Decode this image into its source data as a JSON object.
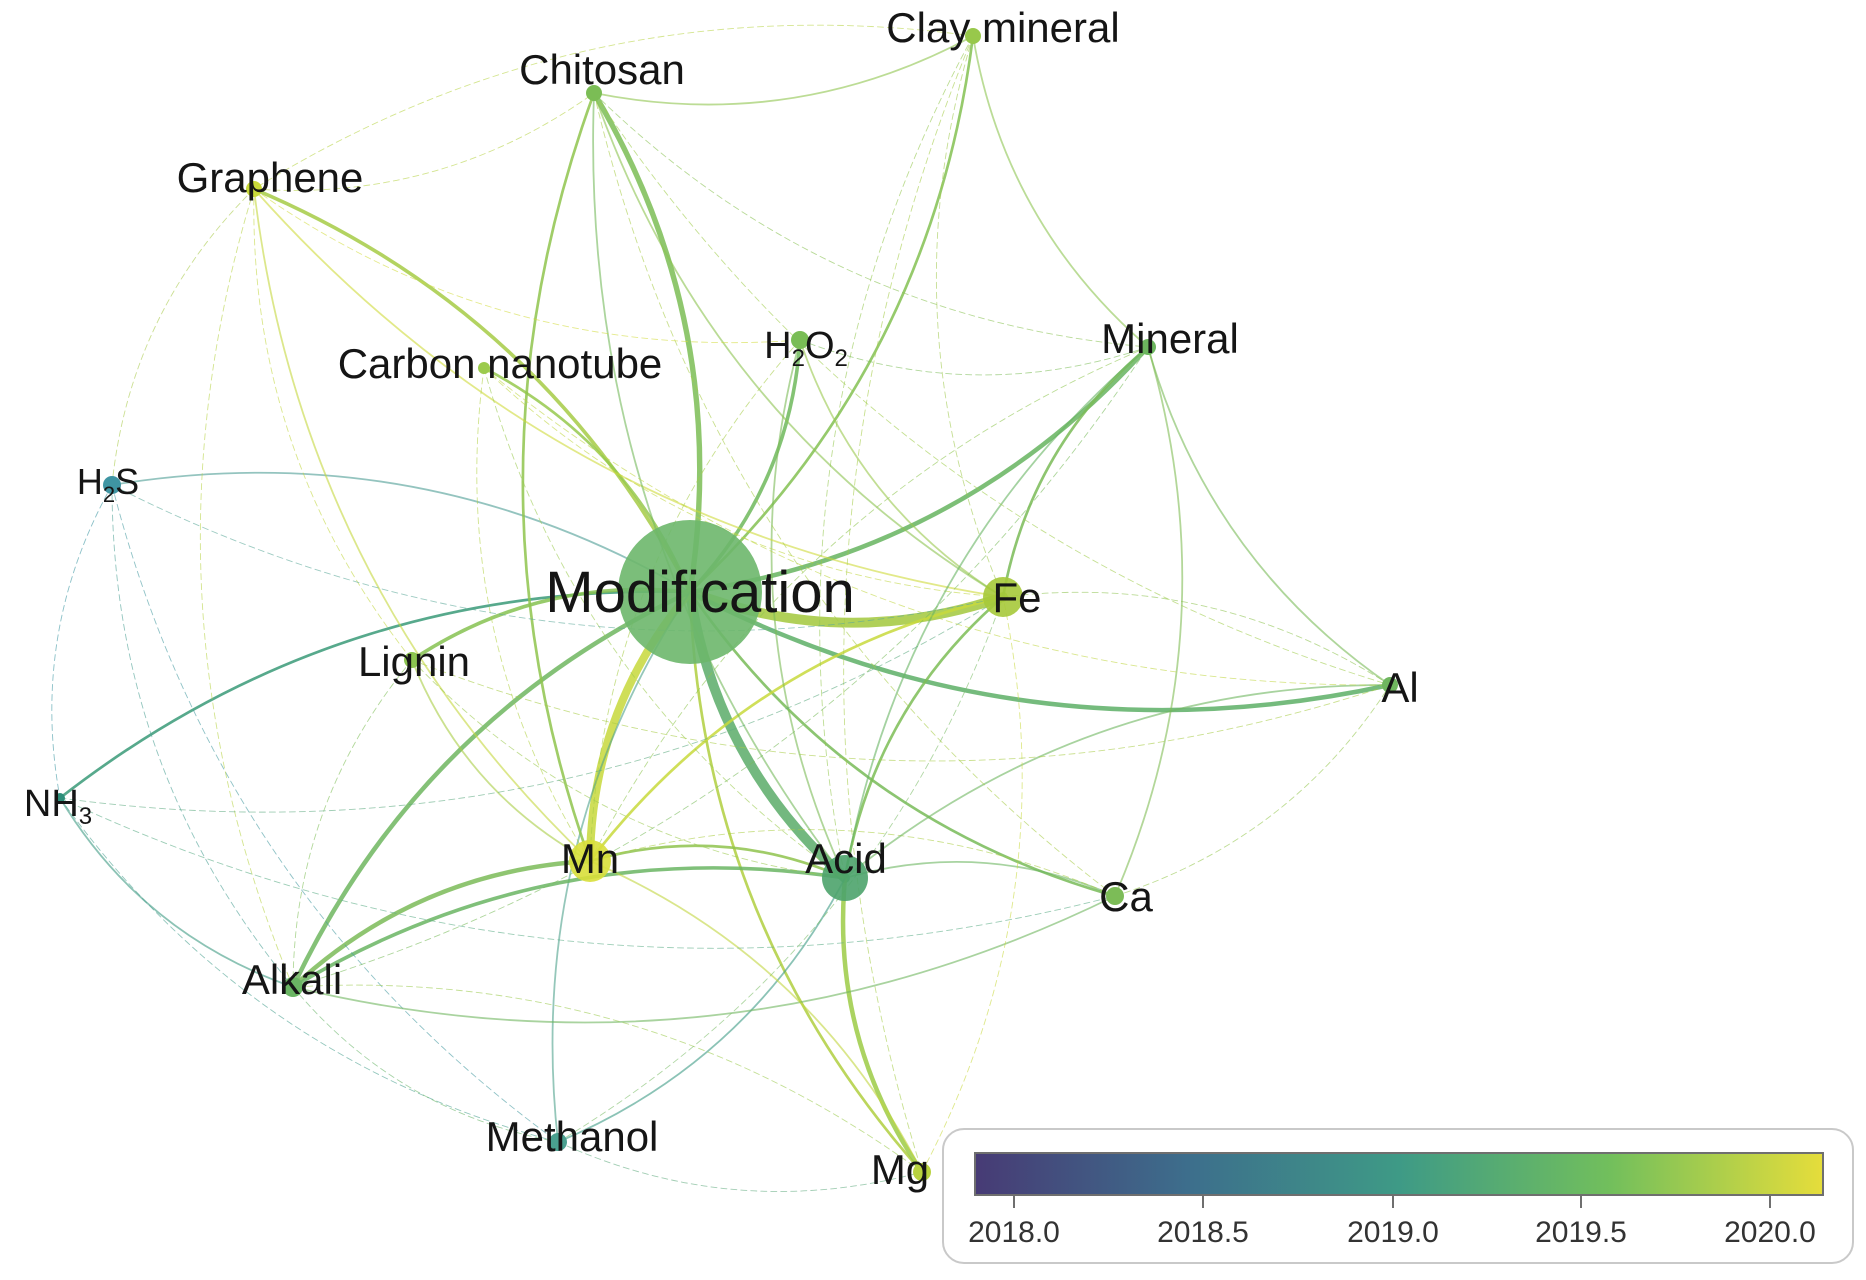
{
  "nodes": [
    {
      "id": "modification",
      "label": "Modification",
      "color": "#6db76c"
    },
    {
      "id": "fe",
      "label": "Fe",
      "color": "#a6c93a"
    },
    {
      "id": "acid",
      "label": "Acid",
      "color": "#4da36c"
    },
    {
      "id": "mn",
      "label": "Mn",
      "color": "#d8df3a"
    },
    {
      "id": "lignin",
      "label": "Lignin",
      "color": "#8cc450"
    },
    {
      "id": "chitosan",
      "label": "Chitosan",
      "color": "#7bbd55"
    },
    {
      "id": "clay",
      "label": "Clay mineral",
      "color": "#98c84b"
    },
    {
      "id": "graphene",
      "label": "Graphene",
      "color": "#c9d93a"
    },
    {
      "id": "cnt",
      "label": "Carbon nanotube",
      "color": "#9ccb4d"
    },
    {
      "id": "h2o2",
      "label_main": "H",
      "label_sub1": "2",
      "label_mid": "O",
      "label_sub2": "2",
      "color": "#79bd55"
    },
    {
      "id": "mineral",
      "label": "Mineral",
      "color": "#6cb65e"
    },
    {
      "id": "h2s",
      "label_main": "H",
      "label_sub": "2",
      "label_end": "S",
      "color": "#3f95a3"
    },
    {
      "id": "al",
      "label": "Al",
      "color": "#6fb65f"
    },
    {
      "id": "nh3",
      "label_main": "NH",
      "label_sub": "3",
      "color": "#2e8f7a"
    },
    {
      "id": "ca",
      "label": "Ca",
      "color": "#7cbc57"
    },
    {
      "id": "alkali",
      "label": "Alkali",
      "color": "#6ab563"
    },
    {
      "id": "methanol",
      "label": "Methanol",
      "color": "#4aa08f"
    },
    {
      "id": "mg",
      "label": "Mg",
      "color": "#b8d23e"
    }
  ],
  "links": [
    [
      "modification",
      "fe",
      11,
      "#a2c83c"
    ],
    [
      "modification",
      "acid",
      11,
      "#5aab68"
    ],
    [
      "modification",
      "mn",
      9,
      "#c7d83b"
    ],
    [
      "modification",
      "chitosan",
      6,
      "#7bbd55"
    ],
    [
      "modification",
      "graphene",
      4,
      "#a6cb45"
    ],
    [
      "modification",
      "mineral",
      5,
      "#66b45f"
    ],
    [
      "modification",
      "al",
      5,
      "#5daf66"
    ],
    [
      "modification",
      "nh3",
      3,
      "#3a9a78"
    ],
    [
      "modification",
      "h2s",
      2,
      "#4c9d94"
    ],
    [
      "modification",
      "alkali",
      5,
      "#6fb65f"
    ],
    [
      "modification",
      "lignin",
      4,
      "#86c251"
    ],
    [
      "modification",
      "h2o2",
      4,
      "#6fb85c"
    ],
    [
      "modification",
      "clay",
      3,
      "#84c152"
    ],
    [
      "modification",
      "cnt",
      3,
      "#96c94e"
    ],
    [
      "modification",
      "methanol",
      2,
      "#4fa28c"
    ],
    [
      "modification",
      "mg",
      3,
      "#b0cf40"
    ],
    [
      "modification",
      "ca",
      3,
      "#78bb58"
    ],
    [
      "mn",
      "alkali",
      5,
      "#7bbb58"
    ],
    [
      "acid",
      "alkali",
      4,
      "#6ab563"
    ],
    [
      "acid",
      "mg",
      5,
      "#9ccb45"
    ],
    [
      "acid",
      "mn",
      3,
      "#8fc34e"
    ],
    [
      "fe",
      "mn",
      3,
      "#c8d93c"
    ],
    [
      "fe",
      "acid",
      3,
      "#7dbd56"
    ],
    [
      "mineral",
      "al",
      2,
      "#79bb59"
    ],
    [
      "mineral",
      "fe",
      3,
      "#7abb57"
    ],
    [
      "h2o2",
      "fe",
      2,
      "#9ac84c"
    ],
    [
      "h2o2",
      "acid",
      2,
      "#7bbb56"
    ],
    [
      "chitosan",
      "mn",
      3,
      "#8fc44e"
    ],
    [
      "chitosan",
      "fe",
      2,
      "#8cc350"
    ],
    [
      "chitosan",
      "clay",
      2,
      "#8fc54f"
    ],
    [
      "graphene",
      "mn",
      2,
      "#c5d73e"
    ],
    [
      "graphene",
      "fe",
      2,
      "#cfdb3b"
    ],
    [
      "graphene",
      "chitosan",
      1,
      "#b5d244"
    ],
    [
      "clay",
      "mineral",
      2,
      "#8dc451"
    ],
    [
      "clay",
      "mg",
      1,
      "#a3cb46"
    ],
    [
      "clay",
      "acid",
      1,
      "#93c64d"
    ],
    [
      "h2s",
      "nh3",
      1,
      "#3c96a1"
    ],
    [
      "h2s",
      "methanol",
      1,
      "#459aa0"
    ],
    [
      "nh3",
      "alkali",
      2,
      "#3f9b84"
    ],
    [
      "nh3",
      "methanol",
      1,
      "#4aa08f"
    ],
    [
      "methanol",
      "acid",
      2,
      "#3e9b86"
    ],
    [
      "methanol",
      "mg",
      1,
      "#62ac80"
    ],
    [
      "alkali",
      "ca",
      2,
      "#6fb65f"
    ],
    [
      "alkali",
      "methanol",
      1,
      "#6ab56b"
    ],
    [
      "ca",
      "mineral",
      2,
      "#80bd55"
    ],
    [
      "ca",
      "al",
      1,
      "#94c64e"
    ],
    [
      "ca",
      "acid",
      2,
      "#6db660"
    ],
    [
      "ca",
      "mn",
      1,
      "#aacd43"
    ],
    [
      "al",
      "acid",
      2,
      "#6eb65f"
    ],
    [
      "al",
      "fe",
      1,
      "#8dc350"
    ],
    [
      "lignin",
      "mn",
      2,
      "#a8cd45"
    ],
    [
      "lignin",
      "acid",
      1,
      "#9ac84b"
    ],
    [
      "lignin",
      "alkali",
      1,
      "#7fbe56"
    ],
    [
      "cnt",
      "mn",
      1,
      "#b1d042"
    ],
    [
      "cnt",
      "acid",
      1,
      "#9ac94c"
    ],
    [
      "cnt",
      "fe",
      1,
      "#c0d540"
    ],
    [
      "mg",
      "mn",
      2,
      "#c1d53f"
    ],
    [
      "mg",
      "fe",
      1,
      "#c8d83d"
    ],
    [
      "mg",
      "alkali",
      1,
      "#9bc94c"
    ],
    [
      "mineral",
      "acid",
      2,
      "#68b463"
    ],
    [
      "mineral",
      "mn",
      1,
      "#8ec44f"
    ],
    [
      "h2o2",
      "mn",
      1,
      "#a5cb46"
    ],
    [
      "h2o2",
      "mineral",
      1,
      "#7cbc57"
    ],
    [
      "chitosan",
      "acid",
      2,
      "#74b95b"
    ],
    [
      "chitosan",
      "mineral",
      1,
      "#88c152"
    ],
    [
      "graphene",
      "lignin",
      1,
      "#c2d63f"
    ],
    [
      "graphene",
      "alkali",
      1,
      "#b6d242"
    ],
    [
      "h2s",
      "alkali",
      1,
      "#4a9e93"
    ],
    [
      "h2s",
      "fe",
      1,
      "#5ca89a"
    ],
    [
      "nh3",
      "fe",
      1,
      "#5eaa80"
    ],
    [
      "nh3",
      "ca",
      1,
      "#5aab86"
    ],
    [
      "methanol",
      "fe",
      1,
      "#7bbc67"
    ],
    [
      "lignin",
      "al",
      1,
      "#a7cc45"
    ],
    [
      "cnt",
      "al",
      1,
      "#bfd541"
    ],
    [
      "chitosan",
      "al",
      1,
      "#9fcb49"
    ],
    [
      "chitosan",
      "ca",
      1,
      "#a6cc46"
    ],
    [
      "graphene",
      "h2s",
      1,
      "#a8ca4a"
    ],
    [
      "graphene",
      "h2o2",
      1,
      "#d2dc3d"
    ],
    [
      "clay",
      "fe",
      1,
      "#9ec84b"
    ],
    [
      "clay",
      "graphene",
      1,
      "#b8d344"
    ],
    [
      "alkali",
      "mineral",
      1,
      "#78ba5a"
    ]
  ],
  "colorbar": {
    "ticks": [
      "2018.0",
      "2018.5",
      "2019.0",
      "2019.5",
      "2020.0"
    ],
    "range": [
      2017.9,
      2020.15
    ],
    "gradient": [
      "#473b75",
      "#3d6e8c",
      "#3e9a86",
      "#72bf5c",
      "#e5dd3b"
    ]
  }
}
